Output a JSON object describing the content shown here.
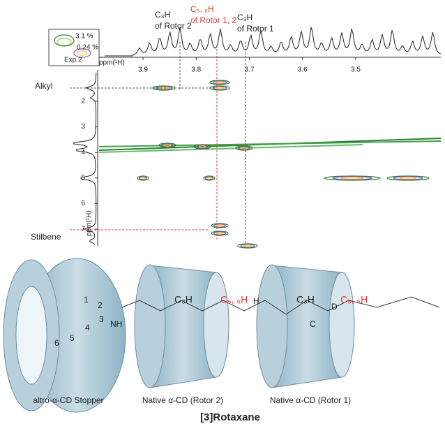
{
  "spectrum": {
    "x_axis_label": "ppm(¹H)",
    "x_ticks": [
      3.9,
      3.8,
      3.7,
      3.6,
      3.5
    ],
    "y_axis_label": "ppm(¹H)",
    "y_ticks": [
      2,
      3,
      4,
      5,
      6,
      7
    ],
    "annotations": [
      {
        "line1": "C₃H",
        "line2": "of Rotor 2"
      },
      {
        "line1": "C₅, ₆H",
        "line2": "of Rotor 1, 2"
      },
      {
        "line1": "C₃H",
        "line2": "of Rotor 1"
      }
    ],
    "side_labels": [
      "Alkyl",
      "Stilbene"
    ],
    "legend": {
      "high": "3.1 %",
      "low": "0.24 %",
      "name": "Exp.2"
    }
  },
  "molecule": {
    "stopper_numbers": [
      "1",
      "2",
      "3",
      "4",
      "5",
      "6"
    ],
    "rotor2_labels": [
      "C₃H",
      "C₅, ₆H"
    ],
    "rotor1_labels": [
      "C₃H",
      "C₅, ₆H"
    ],
    "atoms": [
      "NH",
      "H",
      "C",
      "D"
    ],
    "captions": [
      "altro-α-CD Stopper",
      "Native α-CD (Rotor 2)",
      "Native α-CD (Rotor 1)"
    ],
    "title": "[3]Rotaxane"
  }
}
